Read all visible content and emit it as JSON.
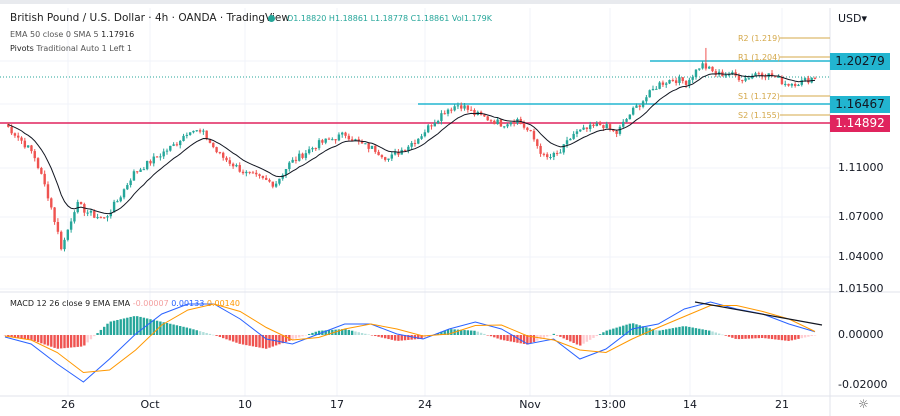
{
  "header": {
    "title": "British Pound / U.S. Dollar · 4h · OANDA · TradingView",
    "ohlc": "O1.18820 H1.18861 L1.18778 C1.18861 Vol1.179K",
    "currency": "USD",
    "ema": {
      "label": "EMA 50 close 0 SMA 5",
      "value": "1.17916"
    },
    "pivots": {
      "label": "Pivots",
      "params": "Traditional Auto 1 Left 1"
    }
  },
  "pivot_labels": {
    "r2": "R2 (1.219)",
    "r1": "R1 (1.204)",
    "s1": "S1 (1.172)",
    "s2": "S2 (1.155)"
  },
  "price_labels": [
    {
      "value": "1.20279",
      "color": "#22b5d0"
    },
    {
      "value": "1.16467",
      "color": "#22b5d0"
    },
    {
      "value": "1.14892",
      "color": "#e0245e"
    }
  ],
  "price_ticks": [
    "1.11000",
    "1.07000",
    "1.04000",
    "1.01500"
  ],
  "macd": {
    "label": "MACD 12 26 close 9 EMA EMA",
    "hist": "-0.00007",
    "macd": "0.00133",
    "signal": "0.00140",
    "ticks": [
      "0.00000",
      "-0.02000"
    ]
  },
  "time_ticks": [
    "26",
    "Oct",
    "10",
    "17",
    "24",
    "Nov",
    "13:00",
    "14",
    "21"
  ],
  "colors": {
    "up": "#26a69a",
    "down": "#ef5350",
    "ema": "#131722",
    "macd": "#2962ff",
    "signal": "#ff9800",
    "pivot": "#d4a84a"
  },
  "chart_data": {
    "type": "candlestick",
    "symbol": "GBPUSD",
    "closes": [
      1.148,
      1.1358,
      1.1222,
      1.0888,
      1.046,
      1.0806,
      1.0724,
      1.0685,
      1.0847,
      1.1051,
      1.1135,
      1.1222,
      1.1307,
      1.1437,
      1.1394,
      1.1222,
      1.1135,
      1.1051,
      1.101,
      1.097,
      1.1135,
      1.1222,
      1.1307,
      1.135,
      1.1394,
      1.1307,
      1.1264,
      1.1178,
      1.1264,
      1.135,
      1.148,
      1.1597,
      1.1647,
      1.1567,
      1.1524,
      1.148,
      1.1524,
      1.1394,
      1.1178,
      1.1222,
      1.1394,
      1.1437,
      1.148,
      1.1394,
      1.1567,
      1.1691,
      1.1824,
      1.1868,
      1.1842,
      1.2001,
      1.1913,
      1.1913,
      1.1868,
      1.193,
      1.1895,
      1.1824,
      1.1842,
      1.1886
    ],
    "macd_line": [
      -0.0008,
      -0.0036,
      -0.0116,
      -0.0188,
      -0.0096,
      0.0004,
      0.0084,
      0.0124,
      0.0124,
      0.0064,
      -0.0016,
      -0.0036,
      0.0004,
      0.0044,
      0.0044,
      0.0004,
      -0.0016,
      0.0024,
      0.0052,
      0.0024,
      -0.0036,
      -0.0016,
      -0.0096,
      -0.0056,
      0.0024,
      0.0044,
      0.0104,
      0.0132,
      0.0104,
      0.0084,
      0.0044,
      0.0013
    ],
    "signal_line": [
      -0.0004,
      -0.002,
      -0.007,
      -0.015,
      -0.014,
      -0.006,
      0.004,
      0.01,
      0.0124,
      0.0094,
      0.003,
      -0.002,
      -0.001,
      0.0024,
      0.0044,
      0.0024,
      -0.0004,
      0.0004,
      0.0038,
      0.004,
      -0.0004,
      -0.002,
      -0.006,
      -0.007,
      -0.0016,
      0.003,
      0.0074,
      0.0118,
      0.0118,
      0.0094,
      0.0064,
      0.0014
    ],
    "levels": {
      "resistance": 1.20279,
      "pivot_high": 1.16467,
      "support": 1.14892
    }
  }
}
